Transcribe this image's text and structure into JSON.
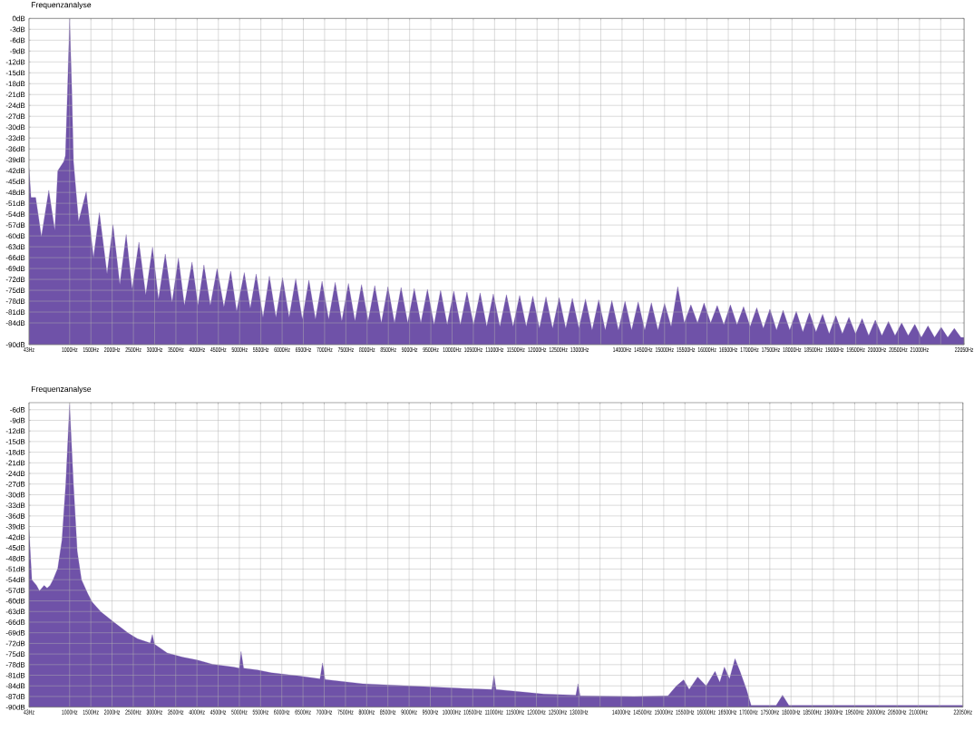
{
  "chart_data": [
    {
      "type": "area",
      "title": "Frequenzanalyse",
      "color": "#6f52a8",
      "grid": true,
      "xlim": [
        43,
        22050
      ],
      "ylim": [
        -90,
        0
      ],
      "xticks": [
        {
          "value": 43,
          "label": "43Hz"
        },
        {
          "value": 1000,
          "label": "1000Hz"
        },
        {
          "value": 1500,
          "label": "1500Hz"
        },
        {
          "value": 2000,
          "label": "2000Hz"
        },
        {
          "value": 2500,
          "label": "2500Hz"
        },
        {
          "value": 3000,
          "label": "3000Hz"
        },
        {
          "value": 3500,
          "label": "3500Hz"
        },
        {
          "value": 4000,
          "label": "4000Hz"
        },
        {
          "value": 4500,
          "label": "4500Hz"
        },
        {
          "value": 5000,
          "label": "5000Hz"
        },
        {
          "value": 5500,
          "label": "5500Hz"
        },
        {
          "value": 6000,
          "label": "6000Hz"
        },
        {
          "value": 6500,
          "label": "6500Hz"
        },
        {
          "value": 7000,
          "label": "7000Hz"
        },
        {
          "value": 7500,
          "label": "7500Hz"
        },
        {
          "value": 8000,
          "label": "8000Hz"
        },
        {
          "value": 8500,
          "label": "8500Hz"
        },
        {
          "value": 9000,
          "label": "9000Hz"
        },
        {
          "value": 9500,
          "label": "9500Hz"
        },
        {
          "value": 10000,
          "label": "10000Hz"
        },
        {
          "value": 10500,
          "label": "10500Hz"
        },
        {
          "value": 11000,
          "label": "11000Hz"
        },
        {
          "value": 11500,
          "label": "11500Hz"
        },
        {
          "value": 12000,
          "label": "12000Hz"
        },
        {
          "value": 12500,
          "label": "12500Hz"
        },
        {
          "value": 13000,
          "label": "13000Hz"
        },
        {
          "value": 13500,
          "label": null
        },
        {
          "value": 14000,
          "label": "14000Hz"
        },
        {
          "value": 14500,
          "label": "14500Hz"
        },
        {
          "value": 15000,
          "label": "15000Hz"
        },
        {
          "value": 15500,
          "label": "15500Hz"
        },
        {
          "value": 16000,
          "label": "16000Hz"
        },
        {
          "value": 16500,
          "label": "16500Hz"
        },
        {
          "value": 17000,
          "label": "17000Hz"
        },
        {
          "value": 17500,
          "label": "17500Hz"
        },
        {
          "value": 18000,
          "label": "18000Hz"
        },
        {
          "value": 18500,
          "label": "18500Hz"
        },
        {
          "value": 19000,
          "label": "19000Hz"
        },
        {
          "value": 19500,
          "label": "19500Hz"
        },
        {
          "value": 20000,
          "label": "20000Hz"
        },
        {
          "value": 20500,
          "label": "20500Hz"
        },
        {
          "value": 21000,
          "label": "21000Hz"
        },
        {
          "value": 21500,
          "label": null
        },
        {
          "value": 22050,
          "label": "22050Hz"
        }
      ],
      "yticks": [
        {
          "value": 0,
          "label": "0dB"
        },
        {
          "value": -3,
          "label": "-3dB"
        },
        {
          "value": -6,
          "label": "-6dB"
        },
        {
          "value": -9,
          "label": "-9dB"
        },
        {
          "value": -12,
          "label": "-12dB"
        },
        {
          "value": -15,
          "label": "-15dB"
        },
        {
          "value": -18,
          "label": "-18dB"
        },
        {
          "value": -21,
          "label": "-21dB"
        },
        {
          "value": -24,
          "label": "-24dB"
        },
        {
          "value": -27,
          "label": "-27dB"
        },
        {
          "value": -30,
          "label": "-30dB"
        },
        {
          "value": -33,
          "label": "-33dB"
        },
        {
          "value": -36,
          "label": "-36dB"
        },
        {
          "value": -39,
          "label": "-39dB"
        },
        {
          "value": -42,
          "label": "-42dB"
        },
        {
          "value": -45,
          "label": "-45dB"
        },
        {
          "value": -48,
          "label": "-48dB"
        },
        {
          "value": -51,
          "label": "-51dB"
        },
        {
          "value": -54,
          "label": "-54dB"
        },
        {
          "value": -57,
          "label": "-57dB"
        },
        {
          "value": -60,
          "label": "-60dB"
        },
        {
          "value": -63,
          "label": "-63dB"
        },
        {
          "value": -66,
          "label": "-66dB"
        },
        {
          "value": -69,
          "label": "-69dB"
        },
        {
          "value": -72,
          "label": "-72dB"
        },
        {
          "value": -75,
          "label": "-75dB"
        },
        {
          "value": -78,
          "label": "-78dB"
        },
        {
          "value": -81,
          "label": "-81dB"
        },
        {
          "value": -84,
          "label": "-84dB"
        },
        {
          "value": -90,
          "label": "-90dB"
        }
      ],
      "x": [
        43,
        90,
        200,
        335,
        509,
        650,
        720,
        860,
        900,
        950,
        1000,
        1050,
        1090,
        1210,
        1390,
        1560,
        1700,
        1880,
        2020,
        2180,
        2330,
        2470,
        2630,
        2790,
        2950,
        3090,
        3250,
        3410,
        3560,
        3700,
        3880,
        4020,
        4160,
        4310,
        4470,
        4630,
        4790,
        4930,
        5110,
        5250,
        5390,
        5550,
        5700,
        5855,
        6010,
        6165,
        6320,
        6475,
        6630,
        6785,
        6940,
        7095,
        7250,
        7405,
        7560,
        7715,
        7870,
        8025,
        8180,
        8335,
        8490,
        8645,
        8800,
        8955,
        9110,
        9265,
        9420,
        9575,
        9730,
        9885,
        10040,
        10195,
        10350,
        10505,
        10660,
        10815,
        10970,
        11125,
        11280,
        11435,
        11590,
        11745,
        11900,
        12055,
        12210,
        12365,
        12520,
        12675,
        12830,
        12985,
        13140,
        13295,
        13450,
        13605,
        13760,
        13915,
        14070,
        14225,
        14380,
        14535,
        14690,
        14845,
        15000,
        15155,
        15310,
        15465,
        15620,
        15775,
        15930,
        16085,
        16240,
        16395,
        16550,
        16705,
        16860,
        17015,
        17170,
        17325,
        17480,
        17635,
        17790,
        17945,
        18100,
        18255,
        18410,
        18565,
        18720,
        18875,
        19030,
        19185,
        19340,
        19495,
        19650,
        19805,
        19960,
        20115,
        20270,
        20425,
        20580,
        20735,
        20890,
        21045,
        21200,
        21355,
        21510,
        21665,
        21820,
        21975,
        22050
      ],
      "values": [
        -41.2,
        -49.4,
        -49.4,
        -60.2,
        -47.4,
        -58.5,
        -42,
        -39.5,
        -37.9,
        -19.7,
        0,
        -19.7,
        -39.5,
        -56,
        -47.8,
        -66,
        -53.6,
        -70.5,
        -56.9,
        -73.4,
        -59.6,
        -74.6,
        -61.7,
        -76.3,
        -63.1,
        -77.5,
        -65,
        -78.3,
        -66.1,
        -79.2,
        -67.2,
        -79.2,
        -68,
        -79.2,
        -69,
        -79.6,
        -69.7,
        -80.8,
        -70.1,
        -80,
        -70.5,
        -82.5,
        -71.1,
        -82.5,
        -71.5,
        -82.5,
        -71.8,
        -83,
        -72.2,
        -83,
        -72.5,
        -83,
        -72.8,
        -83.5,
        -73.1,
        -83.5,
        -73.4,
        -83.5,
        -73.7,
        -84,
        -74,
        -84,
        -74.2,
        -84,
        -74.5,
        -84,
        -74.7,
        -84.5,
        -75,
        -84.5,
        -75.2,
        -84.5,
        -75.5,
        -84.5,
        -75.7,
        -85,
        -76,
        -85,
        -76.2,
        -85,
        -76.4,
        -85,
        -76.6,
        -85.5,
        -76.8,
        -85.5,
        -77,
        -85.5,
        -77.2,
        -85.5,
        -77.4,
        -86,
        -77.6,
        -86,
        -77.8,
        -86,
        -78,
        -86,
        -78.2,
        -86,
        -78.4,
        -86,
        -78.6,
        -85,
        -74,
        -84,
        -79,
        -84,
        -78.5,
        -84,
        -79.2,
        -84.5,
        -79,
        -84.5,
        -79.5,
        -85,
        -79.8,
        -85.5,
        -80.2,
        -86,
        -80.5,
        -86,
        -80.8,
        -86.5,
        -81.2,
        -86.5,
        -81.6,
        -87,
        -82,
        -87,
        -82.4,
        -87,
        -82.8,
        -87.5,
        -83.2,
        -87.5,
        -83.6,
        -87.5,
        -84,
        -87.5,
        -84.4,
        -88,
        -84.8,
        -88,
        -85.2,
        -88,
        -85.5,
        -88,
        -88
      ]
    },
    {
      "type": "area",
      "title": "Frequenzanalyse",
      "color": "#6f52a8",
      "grid": true,
      "xlim": [
        43,
        22050
      ],
      "ylim": [
        -90,
        -4
      ],
      "xticks": [
        {
          "value": 43,
          "label": "43Hz"
        },
        {
          "value": 1000,
          "label": "1000Hz"
        },
        {
          "value": 1500,
          "label": "1500Hz"
        },
        {
          "value": 2000,
          "label": "2000Hz"
        },
        {
          "value": 2500,
          "label": "2500Hz"
        },
        {
          "value": 3000,
          "label": "3000Hz"
        },
        {
          "value": 3500,
          "label": "3500Hz"
        },
        {
          "value": 4000,
          "label": "4000Hz"
        },
        {
          "value": 4500,
          "label": "4500Hz"
        },
        {
          "value": 5000,
          "label": "5000Hz"
        },
        {
          "value": 5500,
          "label": "5500Hz"
        },
        {
          "value": 6000,
          "label": "6000Hz"
        },
        {
          "value": 6500,
          "label": "6500Hz"
        },
        {
          "value": 7000,
          "label": "7000Hz"
        },
        {
          "value": 7500,
          "label": "7500Hz"
        },
        {
          "value": 8000,
          "label": "8000Hz"
        },
        {
          "value": 8500,
          "label": "8500Hz"
        },
        {
          "value": 9000,
          "label": "9000Hz"
        },
        {
          "value": 9500,
          "label": "9500Hz"
        },
        {
          "value": 10000,
          "label": "10000Hz"
        },
        {
          "value": 10500,
          "label": "10500Hz"
        },
        {
          "value": 11000,
          "label": "11000Hz"
        },
        {
          "value": 11500,
          "label": "11500Hz"
        },
        {
          "value": 12000,
          "label": "12000Hz"
        },
        {
          "value": 12500,
          "label": "12500Hz"
        },
        {
          "value": 13000,
          "label": "13000Hz"
        },
        {
          "value": 13500,
          "label": null
        },
        {
          "value": 14000,
          "label": "14000Hz"
        },
        {
          "value": 14500,
          "label": "14500Hz"
        },
        {
          "value": 15000,
          "label": "15000Hz"
        },
        {
          "value": 15500,
          "label": "15500Hz"
        },
        {
          "value": 16000,
          "label": "16000Hz"
        },
        {
          "value": 16500,
          "label": "16500Hz"
        },
        {
          "value": 17000,
          "label": "17000Hz"
        },
        {
          "value": 17500,
          "label": "17500Hz"
        },
        {
          "value": 18000,
          "label": "18000Hz"
        },
        {
          "value": 18500,
          "label": "18500Hz"
        },
        {
          "value": 19000,
          "label": "19000Hz"
        },
        {
          "value": 19500,
          "label": "19500Hz"
        },
        {
          "value": 20000,
          "label": "20000Hz"
        },
        {
          "value": 20500,
          "label": "20500Hz"
        },
        {
          "value": 21000,
          "label": "21000Hz"
        },
        {
          "value": 21500,
          "label": null
        },
        {
          "value": 22050,
          "label": "22050Hz"
        }
      ],
      "yticks": [
        {
          "value": -6,
          "label": "-6dB"
        },
        {
          "value": -9,
          "label": "-9dB"
        },
        {
          "value": -12,
          "label": "-12dB"
        },
        {
          "value": -15,
          "label": "-15dB"
        },
        {
          "value": -18,
          "label": "-18dB"
        },
        {
          "value": -21,
          "label": "-21dB"
        },
        {
          "value": -24,
          "label": "-24dB"
        },
        {
          "value": -27,
          "label": "-27dB"
        },
        {
          "value": -30,
          "label": "-30dB"
        },
        {
          "value": -33,
          "label": "-33dB"
        },
        {
          "value": -36,
          "label": "-36dB"
        },
        {
          "value": -39,
          "label": "-39dB"
        },
        {
          "value": -42,
          "label": "-42dB"
        },
        {
          "value": -45,
          "label": "-45dB"
        },
        {
          "value": -48,
          "label": "-48dB"
        },
        {
          "value": -51,
          "label": "-51dB"
        },
        {
          "value": -54,
          "label": "-54dB"
        },
        {
          "value": -57,
          "label": "-57dB"
        },
        {
          "value": -60,
          "label": "-60dB"
        },
        {
          "value": -63,
          "label": "-63dB"
        },
        {
          "value": -66,
          "label": "-66dB"
        },
        {
          "value": -69,
          "label": "-69dB"
        },
        {
          "value": -72,
          "label": "-72dB"
        },
        {
          "value": -75,
          "label": "-75dB"
        },
        {
          "value": -78,
          "label": "-78dB"
        },
        {
          "value": -81,
          "label": "-81dB"
        },
        {
          "value": -84,
          "label": "-84dB"
        },
        {
          "value": -87,
          "label": "-87dB"
        },
        {
          "value": -90,
          "label": "-90dB"
        }
      ],
      "x": [
        43,
        110,
        220,
        290,
        400,
        470,
        540,
        610,
        720,
        820,
        910,
        1000,
        1090,
        1180,
        1280,
        1430,
        1530,
        1740,
        2030,
        2380,
        2600,
        2900,
        2950,
        3000,
        3300,
        3660,
        4010,
        4370,
        4870,
        5000,
        5040,
        5100,
        5430,
        5750,
        6400,
        6900,
        6960,
        7020,
        7910,
        9000,
        10040,
        10950,
        11000,
        11050,
        12170,
        12930,
        12980,
        13030,
        14300,
        15100,
        15300,
        15470,
        15600,
        15800,
        16000,
        16210,
        16320,
        16430,
        16550,
        16680,
        16800,
        16950,
        17060,
        17650,
        17800,
        17950,
        22050
      ],
      "values": [
        -39.6,
        -54,
        -55.6,
        -57.2,
        -55.6,
        -56.4,
        -55.6,
        -54,
        -50.8,
        -42.8,
        -26.9,
        -4.5,
        -26.9,
        -46,
        -54,
        -58,
        -60.3,
        -63.1,
        -65.9,
        -69.1,
        -70.7,
        -71.9,
        -69.5,
        -72.2,
        -74.7,
        -75.9,
        -76.7,
        -77.9,
        -78.7,
        -79,
        -74.3,
        -79,
        -79.5,
        -80.3,
        -81.2,
        -82,
        -77.5,
        -82.2,
        -83.4,
        -84,
        -84.6,
        -85,
        -81,
        -85,
        -86.3,
        -86.6,
        -83.4,
        -86.8,
        -87,
        -86.8,
        -84,
        -82.3,
        -85,
        -81.5,
        -84,
        -79.9,
        -83,
        -78.7,
        -82,
        -76.3,
        -80,
        -85,
        -89.5,
        -89.5,
        -86.6,
        -89.5,
        -89.5
      ]
    }
  ]
}
